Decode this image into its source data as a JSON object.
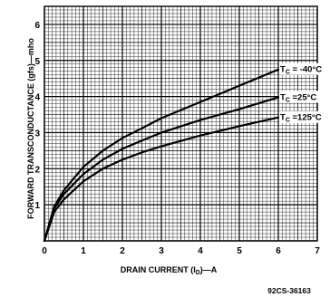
{
  "chart_data": {
    "type": "line",
    "xlabel": "DRAIN CURRENT (I",
    "xlabel_sub": "D",
    "xlabel_tail": ")—A",
    "ylabel": "FORWARD TRANSCONDUCTANCE (gfs)—mho",
    "xlim": [
      0,
      7
    ],
    "ylim": [
      0,
      6.5
    ],
    "x_ticks": [
      "0",
      "1",
      "2",
      "3",
      "4",
      "5",
      "6",
      "7"
    ],
    "y_ticks": [
      "1",
      "2",
      "3",
      "4",
      "5",
      "6"
    ],
    "grid": true,
    "series": [
      {
        "name": "T C = −40°C",
        "label_main": "T",
        "label_sub": "C",
        "label_tail": " = -40°C",
        "x": [
          0,
          0.25,
          0.5,
          1,
          1.5,
          2,
          2.5,
          3,
          4,
          5,
          6
        ],
        "y": [
          0,
          0.95,
          1.4,
          2.05,
          2.5,
          2.85,
          3.12,
          3.4,
          3.85,
          4.3,
          4.75
        ]
      },
      {
        "name": "T C = 25°C",
        "label_main": "T",
        "label_sub": "C",
        "label_tail": " =25°C",
        "x": [
          0,
          0.25,
          0.5,
          1,
          1.5,
          2,
          2.5,
          3,
          4,
          5,
          6
        ],
        "y": [
          0,
          0.9,
          1.3,
          1.85,
          2.25,
          2.55,
          2.78,
          3.0,
          3.35,
          3.65,
          3.98
        ]
      },
      {
        "name": "T C = 125°C",
        "label_main": "T",
        "label_sub": "C",
        "label_tail": " =125°C",
        "x": [
          0,
          0.25,
          0.5,
          1,
          1.5,
          2,
          2.5,
          3,
          4,
          5,
          6
        ],
        "y": [
          0,
          0.8,
          1.15,
          1.65,
          2.0,
          2.25,
          2.45,
          2.62,
          2.92,
          3.18,
          3.42
        ]
      }
    ]
  },
  "figure_code": "92CS-36163"
}
